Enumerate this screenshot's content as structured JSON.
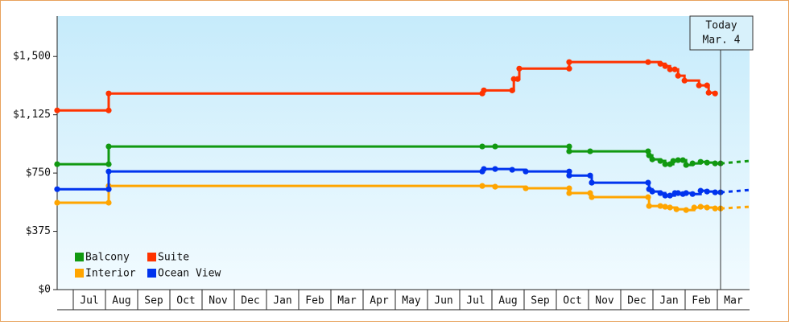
{
  "chart_data": {
    "type": "step-line",
    "annotation": {
      "x": 21.1,
      "label_lines": [
        "Today",
        "Mar. 4"
      ]
    },
    "xlim": [
      0.5,
      22
    ],
    "xticks": [
      {
        "value": 1.5,
        "label": "Jul"
      },
      {
        "value": 2.5,
        "label": "Aug"
      },
      {
        "value": 3.5,
        "label": "Sep"
      },
      {
        "value": 4.5,
        "label": "Oct"
      },
      {
        "value": 5.5,
        "label": "Nov"
      },
      {
        "value": 6.5,
        "label": "Dec"
      },
      {
        "value": 7.5,
        "label": "Jan"
      },
      {
        "value": 8.5,
        "label": "Feb"
      },
      {
        "value": 9.5,
        "label": "Mar"
      },
      {
        "value": 10.5,
        "label": "Apr"
      },
      {
        "value": 11.5,
        "label": "May"
      },
      {
        "value": 12.5,
        "label": "Jun"
      },
      {
        "value": 13.5,
        "label": "Jul"
      },
      {
        "value": 14.5,
        "label": "Aug"
      },
      {
        "value": 15.5,
        "label": "Sep"
      },
      {
        "value": 16.5,
        "label": "Oct"
      },
      {
        "value": 17.5,
        "label": "Nov"
      },
      {
        "value": 18.5,
        "label": "Dec"
      },
      {
        "value": 19.5,
        "label": "Jan"
      },
      {
        "value": 20.5,
        "label": "Feb"
      },
      {
        "value": 21.5,
        "label": "Mar"
      }
    ],
    "ylim": [
      0,
      1760
    ],
    "yticks": [
      {
        "value": 0,
        "label": "$0"
      },
      {
        "value": 375,
        "label": "$375"
      },
      {
        "value": 750,
        "label": "$750"
      },
      {
        "value": 1125,
        "label": "$1,125"
      },
      {
        "value": 1500,
        "label": "$1,500"
      }
    ],
    "series": [
      {
        "name": "Balcony",
        "color": "#119911",
        "x": [
          0.5,
          2.1,
          2.1,
          13.7,
          14.1,
          16.4,
          16.4,
          17.05,
          18.85,
          18.88,
          18.98,
          19.23,
          19.38,
          19.53,
          19.63,
          19.78,
          19.93,
          20.03,
          20.23,
          20.48,
          20.68,
          20.93,
          21.1
        ],
        "values": [
          807,
          807,
          921,
          921,
          921,
          921,
          890,
          890,
          890,
          864,
          838,
          828,
          807,
          807,
          828,
          833,
          833,
          802,
          812,
          822,
          817,
          812,
          812
        ],
        "projection": {
          "x": [
            21.1,
            22
          ],
          "values": [
            812,
            828
          ]
        }
      },
      {
        "name": "Suite",
        "color": "#ff3300",
        "x": [
          0.5,
          2.1,
          2.1,
          13.7,
          13.75,
          14.63,
          14.68,
          14.8,
          14.85,
          16.4,
          16.4,
          18.85,
          19.23,
          19.38,
          19.53,
          19.68,
          19.78,
          19.98,
          20.43,
          20.68,
          20.73,
          20.93
        ],
        "values": [
          1153,
          1153,
          1262,
          1262,
          1282,
          1282,
          1355,
          1355,
          1422,
          1422,
          1464,
          1464,
          1453,
          1438,
          1417,
          1417,
          1376,
          1345,
          1314,
          1314,
          1267,
          1262
        ]
      },
      {
        "name": "Interior",
        "color": "#ffa500",
        "x": [
          0.5,
          2.1,
          2.1,
          13.7,
          14.1,
          15.05,
          16.4,
          16.4,
          17.05,
          17.1,
          18.85,
          18.88,
          19.23,
          19.38,
          19.53,
          19.73,
          20.03,
          20.28,
          20.48,
          20.68,
          20.93,
          21.1
        ],
        "values": [
          559,
          559,
          667,
          667,
          662,
          652,
          652,
          621,
          621,
          595,
          595,
          538,
          538,
          533,
          528,
          517,
          512,
          528,
          533,
          528,
          522,
          522
        ],
        "projection": {
          "x": [
            21.1,
            22
          ],
          "values": [
            522,
            533
          ]
        }
      },
      {
        "name": "Ocean View",
        "color": "#0033ee",
        "x": [
          0.5,
          2.1,
          2.1,
          13.7,
          13.75,
          14.1,
          14.63,
          15.05,
          16.4,
          16.4,
          17.05,
          17.1,
          18.85,
          18.88,
          18.98,
          19.23,
          19.38,
          19.53,
          19.68,
          19.78,
          19.93,
          20.03,
          20.23,
          20.48,
          20.68,
          20.93,
          21.1
        ],
        "values": [
          646,
          646,
          760,
          760,
          776,
          776,
          771,
          760,
          760,
          734,
          734,
          688,
          688,
          646,
          631,
          621,
          605,
          605,
          621,
          621,
          615,
          621,
          615,
          636,
          631,
          626,
          626
        ],
        "projection": {
          "x": [
            21.1,
            22
          ],
          "values": [
            626,
            641
          ]
        }
      }
    ]
  }
}
